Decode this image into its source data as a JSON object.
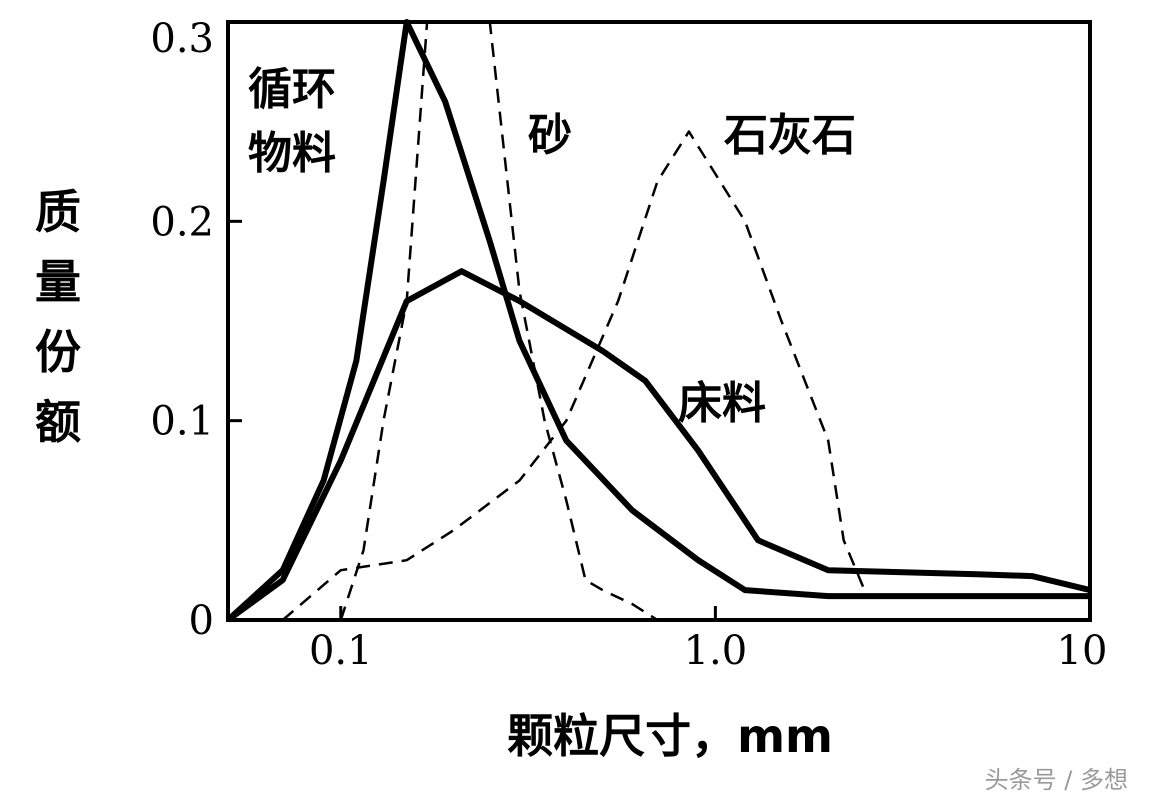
{
  "chart_data": {
    "type": "line",
    "xlabel": "颗粒尺寸，mm",
    "ylabel": "质量份额",
    "x_scale": "log",
    "xlim": [
      0.05,
      10
    ],
    "ylim": [
      0,
      0.3
    ],
    "x_ticks": [
      {
        "value": 0.1,
        "label": "0.1"
      },
      {
        "value": 1.0,
        "label": "1.0"
      },
      {
        "value": 10,
        "label": "10"
      }
    ],
    "y_ticks": [
      {
        "value": 0,
        "label": "0"
      },
      {
        "value": 0.1,
        "label": "0.1"
      },
      {
        "value": 0.2,
        "label": "0.2"
      },
      {
        "value": 0.3,
        "label": "0.3"
      }
    ],
    "grid": false,
    "series": [
      {
        "name": "循环物料",
        "style": "solid",
        "points": [
          [
            0.05,
            0.0
          ],
          [
            0.07,
            0.025
          ],
          [
            0.09,
            0.07
          ],
          [
            0.11,
            0.13
          ],
          [
            0.13,
            0.22
          ],
          [
            0.15,
            0.3
          ],
          [
            0.19,
            0.26
          ],
          [
            0.25,
            0.19
          ],
          [
            0.3,
            0.14
          ],
          [
            0.4,
            0.09
          ],
          [
            0.6,
            0.055
          ],
          [
            0.9,
            0.03
          ],
          [
            1.2,
            0.015
          ],
          [
            2.0,
            0.012
          ],
          [
            5.0,
            0.012
          ],
          [
            8.0,
            0.012
          ],
          [
            10,
            0.012
          ]
        ]
      },
      {
        "name": "床料",
        "style": "solid",
        "points": [
          [
            0.05,
            0.0
          ],
          [
            0.07,
            0.02
          ],
          [
            0.1,
            0.08
          ],
          [
            0.15,
            0.16
          ],
          [
            0.21,
            0.175
          ],
          [
            0.3,
            0.16
          ],
          [
            0.5,
            0.135
          ],
          [
            0.65,
            0.12
          ],
          [
            0.9,
            0.085
          ],
          [
            1.3,
            0.04
          ],
          [
            2.0,
            0.025
          ],
          [
            5.0,
            0.023
          ],
          [
            7.0,
            0.022
          ],
          [
            10,
            0.015
          ]
        ]
      },
      {
        "name": "砂",
        "style": "dashed",
        "points": [
          [
            0.1,
            0.0
          ],
          [
            0.115,
            0.035
          ],
          [
            0.13,
            0.1
          ],
          [
            0.15,
            0.16
          ],
          [
            0.17,
            0.3
          ],
          [
            0.25,
            0.3
          ],
          [
            0.3,
            0.165
          ],
          [
            0.35,
            0.1
          ],
          [
            0.4,
            0.06
          ],
          [
            0.45,
            0.02
          ],
          [
            0.5,
            0.015
          ],
          [
            0.6,
            0.008
          ],
          [
            0.7,
            0.0
          ]
        ]
      },
      {
        "name": "石灰石",
        "style": "dashed",
        "points": [
          [
            0.07,
            0.0
          ],
          [
            0.1,
            0.025
          ],
          [
            0.15,
            0.03
          ],
          [
            0.2,
            0.045
          ],
          [
            0.3,
            0.07
          ],
          [
            0.4,
            0.1
          ],
          [
            0.55,
            0.16
          ],
          [
            0.7,
            0.22
          ],
          [
            0.85,
            0.245
          ],
          [
            1.2,
            0.2
          ],
          [
            1.5,
            0.15
          ],
          [
            2.0,
            0.09
          ],
          [
            2.2,
            0.04
          ],
          [
            2.5,
            0.015
          ]
        ]
      }
    ],
    "series_labels": [
      "循环物料",
      "砂",
      "石灰石",
      "床料"
    ]
  },
  "watermark": "头条号 / 多想"
}
